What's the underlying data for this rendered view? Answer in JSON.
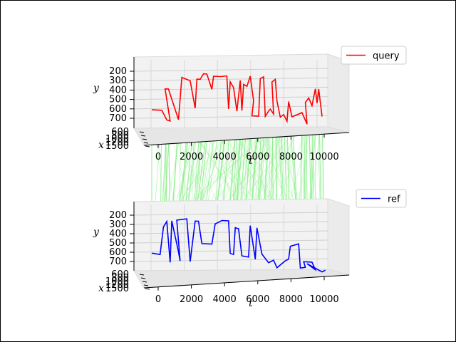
{
  "chart_data": {
    "type": "line",
    "projection": "3d",
    "connectors_color": "#90ee90",
    "panels": [
      {
        "name": "query",
        "legend_label": "query",
        "legend_position": "upper-right",
        "color": "#ff0000",
        "tlabel": "t",
        "ylabel": "y",
        "xlabel": "x",
        "t_ticks": [
          "0",
          "2000",
          "4000",
          "6000",
          "8000",
          "10000"
        ],
        "y_ticks": [
          "200",
          "300",
          "400",
          "500",
          "600",
          "700"
        ],
        "x_ticks": [
          "600",
          "800",
          "1000",
          "1200",
          "1500"
        ],
        "t_range": [
          -800,
          10500
        ],
        "y_range": [
          150,
          780
        ],
        "points": [
          [
            0,
            610
          ],
          [
            600,
            610
          ],
          [
            900,
            710
          ],
          [
            1100,
            720
          ],
          [
            800,
            380
          ],
          [
            1000,
            380
          ],
          [
            1600,
            700
          ],
          [
            1800,
            250
          ],
          [
            2300,
            280
          ],
          [
            2600,
            570
          ],
          [
            2700,
            260
          ],
          [
            2900,
            260
          ],
          [
            3100,
            200
          ],
          [
            3300,
            200
          ],
          [
            3600,
            360
          ],
          [
            3700,
            220
          ],
          [
            4100,
            220
          ],
          [
            4500,
            210
          ],
          [
            4600,
            560
          ],
          [
            4700,
            270
          ],
          [
            4900,
            330
          ],
          [
            5100,
            580
          ],
          [
            5300,
            250
          ],
          [
            5400,
            570
          ],
          [
            5500,
            290
          ],
          [
            5700,
            310
          ],
          [
            5900,
            200
          ],
          [
            6100,
            460
          ],
          [
            6000,
            620
          ],
          [
            6400,
            620
          ],
          [
            6500,
            220
          ],
          [
            6700,
            200
          ],
          [
            6800,
            620
          ],
          [
            7000,
            560
          ],
          [
            7100,
            540
          ],
          [
            7300,
            590
          ],
          [
            7200,
            250
          ],
          [
            7400,
            220
          ],
          [
            7500,
            450
          ],
          [
            7700,
            620
          ],
          [
            7900,
            590
          ],
          [
            8100,
            660
          ],
          [
            8200,
            450
          ],
          [
            8400,
            610
          ],
          [
            9000,
            560
          ],
          [
            9300,
            680
          ],
          [
            9200,
            450
          ],
          [
            9400,
            400
          ],
          [
            9600,
            480
          ],
          [
            9800,
            300
          ],
          [
            9900,
            450
          ],
          [
            10000,
            300
          ],
          [
            10200,
            590
          ]
        ]
      },
      {
        "name": "ref",
        "legend_label": "ref",
        "legend_position": "upper-right",
        "color": "#0000ff",
        "tlabel": "t",
        "ylabel": "y",
        "xlabel": "x",
        "t_ticks": [
          "0",
          "2000",
          "4000",
          "6000",
          "8000",
          "10000"
        ],
        "y_ticks": [
          "200",
          "300",
          "400",
          "500",
          "600",
          "700"
        ],
        "x_ticks": [
          "600",
          "800",
          "1000",
          "1200",
          "1500"
        ],
        "t_range": [
          -800,
          10500
        ],
        "y_range": [
          150,
          780
        ],
        "points": [
          [
            0,
            610
          ],
          [
            500,
            620
          ],
          [
            700,
            320
          ],
          [
            900,
            260
          ],
          [
            1100,
            700
          ],
          [
            1200,
            250
          ],
          [
            1600,
            580
          ],
          [
            1700,
            680
          ],
          [
            1500,
            240
          ],
          [
            2100,
            220
          ],
          [
            2300,
            680
          ],
          [
            2600,
            240
          ],
          [
            2800,
            240
          ],
          [
            3000,
            480
          ],
          [
            3600,
            480
          ],
          [
            3800,
            260
          ],
          [
            4200,
            220
          ],
          [
            4600,
            220
          ],
          [
            4700,
            570
          ],
          [
            4900,
            580
          ],
          [
            5000,
            290
          ],
          [
            5200,
            300
          ],
          [
            5400,
            590
          ],
          [
            5800,
            600
          ],
          [
            5900,
            260
          ],
          [
            6200,
            620
          ],
          [
            6300,
            280
          ],
          [
            6600,
            560
          ],
          [
            7000,
            650
          ],
          [
            7300,
            620
          ],
          [
            7500,
            700
          ],
          [
            8000,
            620
          ],
          [
            8200,
            600
          ],
          [
            8300,
            460
          ],
          [
            8800,
            430
          ],
          [
            8900,
            690
          ],
          [
            9200,
            680
          ],
          [
            9100,
            620
          ],
          [
            9600,
            620
          ],
          [
            9800,
            700
          ],
          [
            9300,
            640
          ],
          [
            10200,
            720
          ],
          [
            10400,
            700
          ]
        ]
      }
    ]
  }
}
